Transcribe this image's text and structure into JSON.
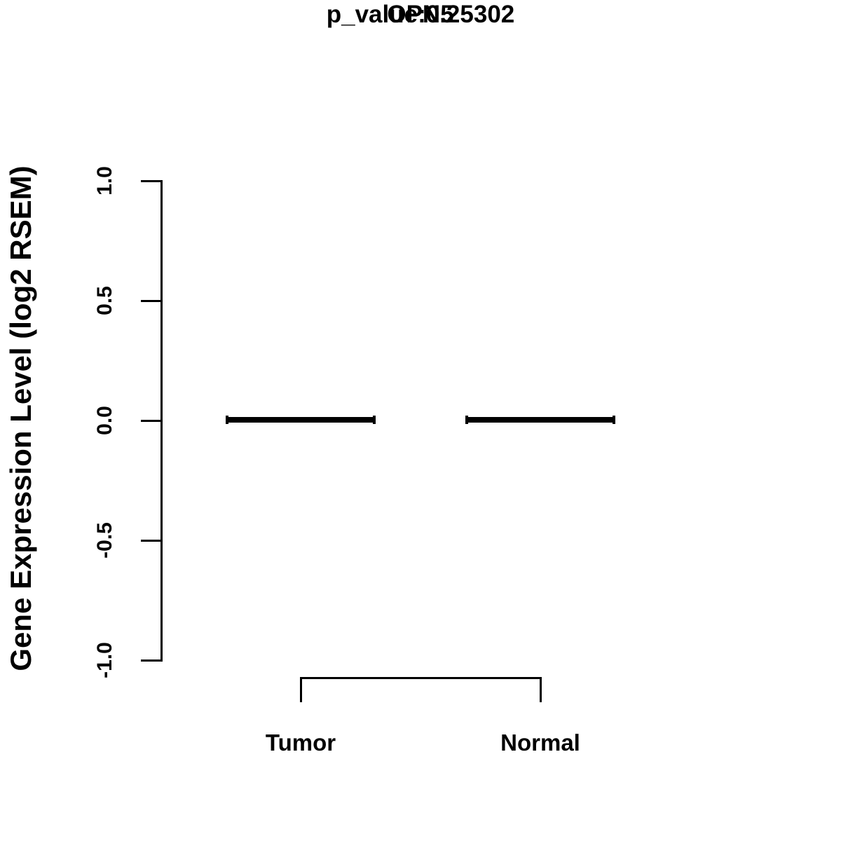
{
  "title": "OPN5",
  "subtitle": "p_value:0.25302",
  "y_axis": {
    "label": "Gene Expression Level (log2 RSEM)",
    "ticks": [
      "1.0",
      "0.5",
      "0.0",
      "-0.5",
      "-1.0"
    ]
  },
  "x_axis": {
    "categories": [
      "Tumor",
      "Normal"
    ]
  },
  "colors": {
    "foreground": "#000000",
    "background": "#ffffff"
  },
  "chart_data": {
    "type": "boxplot",
    "title": "OPN5",
    "subtitle": "p_value:0.25302",
    "xlabel": "",
    "ylabel": "Gene Expression Level (log2 RSEM)",
    "ylim": [
      -1.0,
      1.0
    ],
    "yticks": [
      1.0,
      0.5,
      0.0,
      -0.5,
      -1.0
    ],
    "categories": [
      "Tumor",
      "Normal"
    ],
    "series": [
      {
        "name": "Tumor",
        "median": 0.0,
        "q1": 0.0,
        "q3": 0.0,
        "whisker_low": 0.0,
        "whisker_high": 0.0
      },
      {
        "name": "Normal",
        "median": 0.0,
        "q1": 0.0,
        "q3": 0.0,
        "whisker_low": 0.0,
        "whisker_high": 0.0
      }
    ],
    "annotations": [
      {
        "type": "comparison-bracket",
        "between": [
          "Tumor",
          "Normal"
        ],
        "label": ""
      }
    ],
    "legend": "none",
    "grid": false
  }
}
